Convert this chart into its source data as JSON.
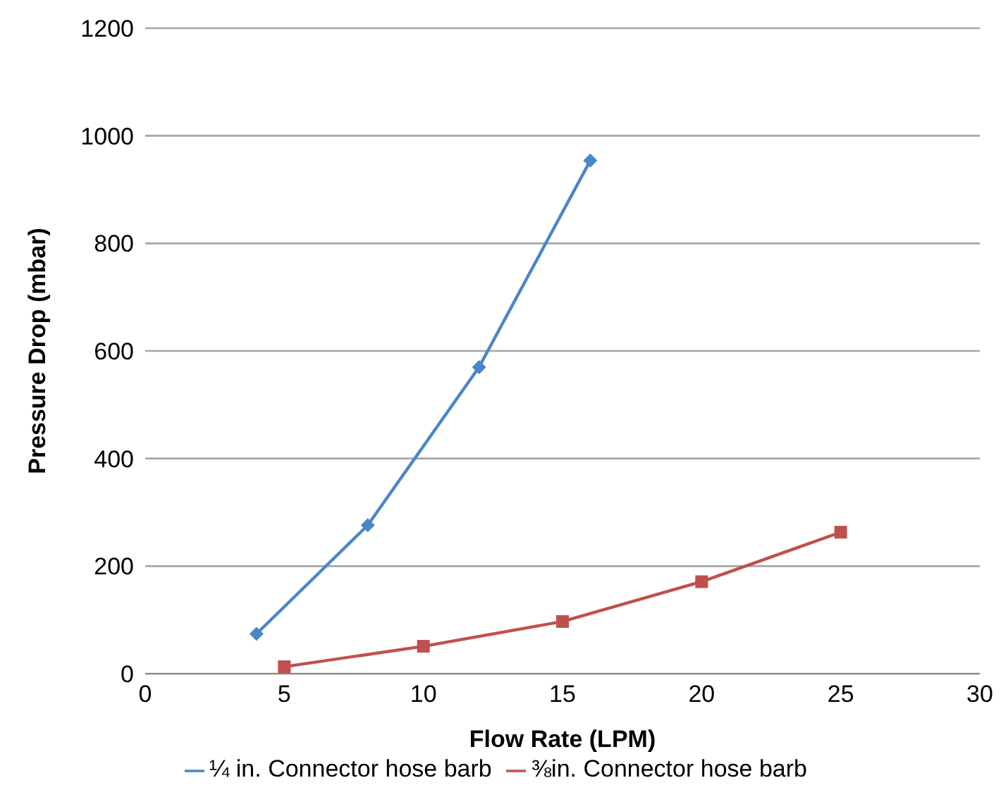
{
  "chart_data": {
    "type": "line",
    "xlabel": "Flow Rate (LPM)",
    "ylabel": "Pressure Drop (mbar)",
    "xlim": [
      0,
      30
    ],
    "xticks": [
      0,
      5,
      10,
      15,
      20,
      25,
      30
    ],
    "ylim": [
      0,
      1200
    ],
    "yticks": [
      0,
      200,
      400,
      600,
      800,
      1000,
      1200
    ],
    "grid": "y",
    "legend": "bottom",
    "line_style": "solid",
    "series": [
      {
        "name": "¼ in. Connector hose barb",
        "color": "#4a86c8",
        "marker": "diamond",
        "x": [
          4,
          8,
          12,
          16
        ],
        "values": [
          74,
          276,
          570,
          954
        ]
      },
      {
        "name": "⅜in. Connector hose barb",
        "color": "#c0504d",
        "marker": "square",
        "x": [
          5,
          10,
          15,
          20,
          25
        ],
        "values": [
          13,
          51,
          97,
          171,
          263
        ]
      }
    ]
  }
}
